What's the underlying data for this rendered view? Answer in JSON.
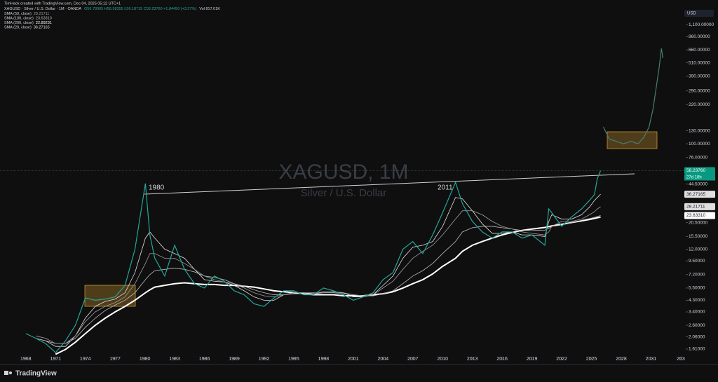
{
  "credit": "TimHack created with TradingView.com, Dec 04, 2025 05:12 UTC+1",
  "ohlc": "O56.78905 H58.98355 L56.18715 C58.23760 +1.84450 (+3.27%)",
  "volume": "Vol 817.01K",
  "currency": "USD",
  "brand": "TradingView",
  "chart_data": {
    "type": "line",
    "title": "XAGUSD, 1M",
    "subtitle": "Silver / U.S. Dollar",
    "log_scale": true,
    "grid": false,
    "xlim": [
      1965.4,
      2034.5
    ],
    "ylim": [
      1.36,
      1360
    ],
    "xticks": [
      1968,
      1971,
      1974,
      1977,
      1980,
      1983,
      1986,
      1989,
      1992,
      1995,
      1998,
      2001,
      2004,
      2007,
      2010,
      2013,
      2016,
      2019,
      2022,
      2025,
      2028,
      2031,
      {
        "value": 2034,
        "label": "203"
      }
    ],
    "yticks": [
      {
        "value": 1.61,
        "label": "1.61000"
      },
      {
        "value": 2.06,
        "label": "2.06000"
      },
      {
        "value": 2.6,
        "label": "2.60000"
      },
      {
        "value": 3.4,
        "label": "3.40000"
      },
      {
        "value": 4.3,
        "label": "4.30000"
      },
      {
        "value": 5.5,
        "label": "5.50000"
      },
      {
        "value": 7.2,
        "label": "7.20000"
      },
      {
        "value": 9.5,
        "label": "9.50000"
      },
      {
        "value": 12,
        "label": "12.00000"
      },
      {
        "value": 15.5,
        "label": "15.50000"
      },
      {
        "value": 20.5,
        "label": "20.50000"
      },
      {
        "value": 44.5,
        "label": "44.50000"
      },
      {
        "value": 76,
        "label": "76.00000"
      },
      {
        "value": 100,
        "label": "100.00000"
      },
      {
        "value": 130,
        "label": "130.00000"
      },
      {
        "value": 220,
        "label": "220.00000"
      },
      {
        "value": 290,
        "label": "290.00000"
      },
      {
        "value": 390,
        "label": "390.00000"
      },
      {
        "value": 510,
        "label": "510.00000"
      },
      {
        "value": 660,
        "label": "660.00000"
      },
      {
        "value": 860,
        "label": "860.00000"
      },
      {
        "value": 1100,
        "label": "1,100.00000"
      }
    ],
    "x": [
      1968,
      1969,
      1970,
      1971,
      1972,
      1973,
      1974,
      1975,
      1976,
      1977,
      1978,
      1979,
      1980.05,
      1980.5,
      1981,
      1982,
      1983,
      1984,
      1985,
      1986,
      1987,
      1988,
      1989,
      1990,
      1991,
      1992,
      1993,
      1994,
      1995,
      1996,
      1997,
      1998,
      1999,
      2000,
      2001,
      2002,
      2003,
      2004,
      2005,
      2006,
      2007,
      2008,
      2009,
      2010,
      2011.3,
      2012,
      2013,
      2014,
      2015,
      2016,
      2017,
      2018,
      2019,
      2020.3,
      2020.7,
      2021,
      2022,
      2023,
      2024,
      2024.8,
      2025.3,
      2025.6,
      2025.92
    ],
    "series": [
      {
        "name": "XAGUSD · Silver / U.S. Dollar · 1M · OANDA",
        "color": "#26a69a",
        "line_width": 1.2,
        "values": [
          2.2,
          2.0,
          1.8,
          1.5,
          1.9,
          2.6,
          4.5,
          4.3,
          4.4,
          4.6,
          5.8,
          12,
          45,
          16,
          10,
          7,
          13,
          8,
          6,
          5.5,
          7,
          6.3,
          5.2,
          4.8,
          4,
          3.8,
          4.5,
          5.2,
          5.2,
          4.8,
          4.8,
          5.5,
          5.2,
          4.8,
          4.3,
          4.6,
          5,
          6.5,
          7.5,
          12,
          14,
          11,
          16,
          25,
          46,
          30,
          21,
          17,
          15,
          17,
          17,
          15,
          16,
          13,
          27,
          25,
          19,
          23,
          27,
          32,
          36,
          50,
          58.2376
        ]
      },
      {
        "name": "SMA (50, close)",
        "color": "#9e9e9e",
        "line_width": 0.8,
        "last_label": "28.21711",
        "values": [
          null,
          2.1,
          2.0,
          1.8,
          1.8,
          2.1,
          2.8,
          3.4,
          3.8,
          4.1,
          4.6,
          6.0,
          9,
          11,
          11,
          10,
          10,
          9,
          8,
          7,
          6.5,
          6.2,
          6,
          5.5,
          5,
          4.7,
          4.6,
          4.8,
          5,
          5,
          5,
          5,
          5,
          5,
          4.8,
          4.7,
          4.8,
          5.5,
          6.3,
          8,
          10,
          11.5,
          13,
          16,
          22,
          26,
          26,
          24,
          21,
          19,
          18,
          17,
          16.5,
          16,
          17,
          19,
          21,
          21,
          22,
          24,
          25.5,
          27,
          28.21711
        ]
      },
      {
        "name": "SMA (100, close)",
        "color": "#bdbdbd",
        "line_width": 0.8,
        "last_label": "23.63310",
        "values": [
          null,
          null,
          1.9,
          1.8,
          1.8,
          2.0,
          2.5,
          3.0,
          3.5,
          3.9,
          4.3,
          5.0,
          6.5,
          7.2,
          7.8,
          8.0,
          8.2,
          8.0,
          7.6,
          7.0,
          6.8,
          6.5,
          6.0,
          5.7,
          5.3,
          5.0,
          4.8,
          4.8,
          4.9,
          4.9,
          4.9,
          5.0,
          5.0,
          4.9,
          4.8,
          4.7,
          4.7,
          4.9,
          5.2,
          6.0,
          7.0,
          7.8,
          9.0,
          11,
          14,
          17,
          18.5,
          19,
          19,
          18.5,
          18,
          17.5,
          17.5,
          17.6,
          18.3,
          19,
          19.5,
          20.5,
          21.5,
          22.2,
          22.8,
          23.2,
          23.6331
        ]
      },
      {
        "name": "SMA (200, close)",
        "color": "#ffffff",
        "line_width": 2,
        "last_label": "22.89231",
        "values": [
          null,
          null,
          null,
          1.45,
          1.6,
          1.85,
          2.2,
          2.6,
          3.0,
          3.4,
          3.8,
          4.3,
          5.0,
          5.3,
          5.6,
          5.8,
          6.0,
          6.1,
          6.0,
          5.9,
          5.9,
          5.8,
          5.8,
          5.7,
          5.6,
          5.4,
          5.2,
          5.1,
          5.0,
          4.9,
          4.8,
          4.8,
          4.8,
          4.7,
          4.7,
          4.7,
          4.8,
          4.9,
          5.1,
          5.5,
          6.0,
          6.5,
          7.3,
          8.5,
          10,
          11.5,
          13,
          14,
          15,
          16,
          16.8,
          17.5,
          18,
          18.6,
          18.9,
          19.2,
          19.8,
          20.5,
          21.2,
          21.8,
          22.3,
          22.6,
          22.89231
        ]
      },
      {
        "name": "SMA (20, close)",
        "color": "#e0e0e0",
        "line_width": 0.8,
        "last_label": "36.27165",
        "values": [
          null,
          2.0,
          1.9,
          1.7,
          1.7,
          2.1,
          3.0,
          3.8,
          4.2,
          4.4,
          5.0,
          7.5,
          15,
          17,
          15,
          12,
          11,
          10,
          8,
          6.5,
          6.3,
          6.2,
          5.8,
          5.2,
          4.6,
          4.3,
          4.3,
          4.8,
          5.0,
          5.0,
          4.9,
          5.1,
          5.1,
          5.0,
          4.6,
          4.6,
          4.8,
          5.8,
          7.0,
          10,
          12.5,
          13,
          14,
          19,
          34,
          33,
          26,
          20,
          16.5,
          16.5,
          17,
          16,
          16,
          15.5,
          21,
          24,
          22,
          22,
          24,
          28,
          32,
          34,
          36.27165
        ]
      }
    ],
    "projection": {
      "color": "#4a7d76",
      "x": [
        2026.2,
        2026.8,
        2027.5,
        2028.2,
        2029,
        2029.7,
        2030.3,
        2030.8,
        2031.2,
        2031.5,
        2031.8,
        2032.05,
        2032.2
      ],
      "values": [
        140,
        110,
        105,
        100,
        105,
        100,
        115,
        140,
        200,
        300,
        450,
        680,
        560
      ]
    },
    "price_labels": [
      {
        "value": 58.2376,
        "label": "58.23760",
        "color": "#089981"
      },
      {
        "value": 36.27165,
        "label": "36.27165",
        "color": "#e0e0e0"
      },
      {
        "value": 28.21711,
        "label": "28.21711",
        "color": "#e0e0e0"
      },
      {
        "value": 23.6331,
        "label": "23.63310",
        "color": "#ffffff"
      }
    ],
    "countdown": "27d 18h",
    "annotations": [
      "1980",
      "2011"
    ]
  }
}
